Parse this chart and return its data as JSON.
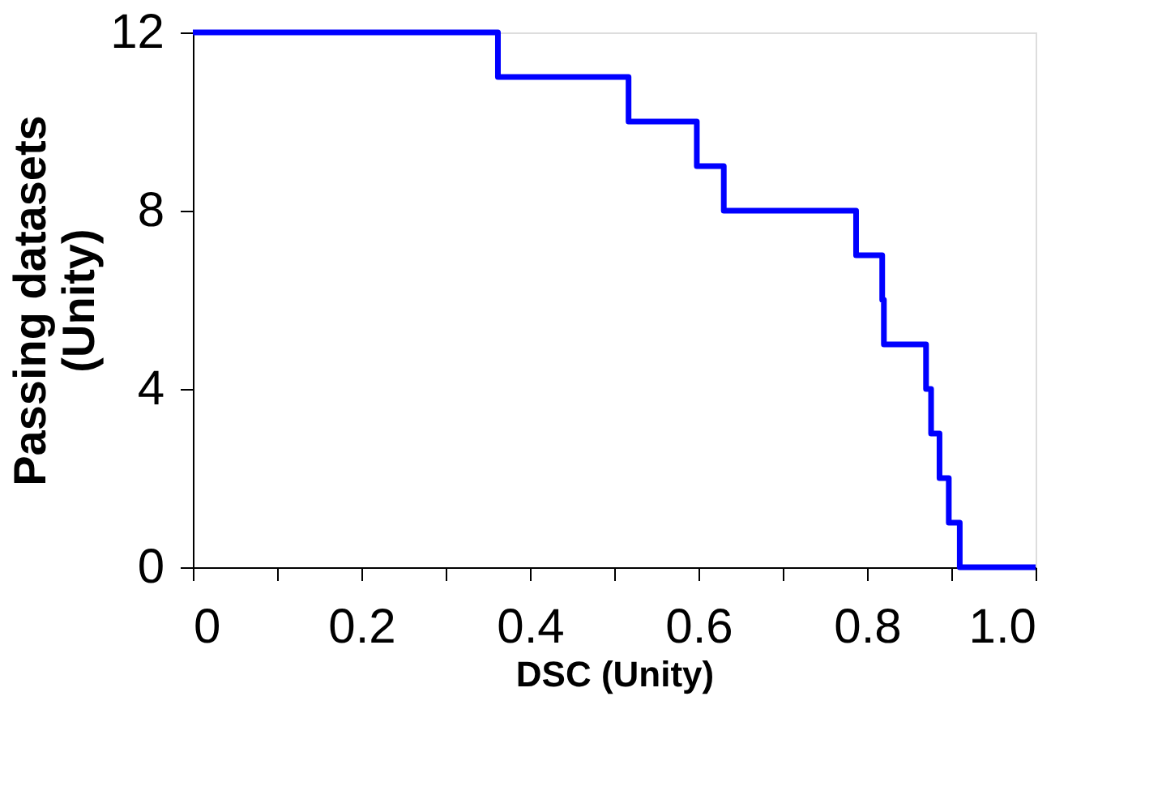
{
  "chart_data": {
    "type": "step",
    "x": [
      0,
      0.362,
      0.517,
      0.598,
      0.63,
      0.787,
      0.818,
      0.82,
      0.87,
      0.876,
      0.886,
      0.897,
      0.91,
      1
    ],
    "series": [
      {
        "color": "#0000ff",
        "values": [
          12,
          11,
          10,
          9,
          8,
          7,
          6,
          5,
          4,
          3,
          2,
          1,
          0,
          0
        ]
      }
    ],
    "xlabel": "DSC (Unity)",
    "ylabel": "Passing datasets\n(Unity)",
    "xlim": [
      0,
      1
    ],
    "ylim": [
      0,
      12
    ],
    "xticks": [
      0,
      {
        "value": 0.1,
        "label": null
      },
      0.2,
      {
        "value": 0.3,
        "label": null
      },
      0.4,
      {
        "value": 0.5,
        "label": null
      },
      0.6,
      {
        "value": 0.7,
        "label": null
      },
      0.8,
      {
        "value": 0.9,
        "label": null
      },
      {
        "value": 1,
        "label": "1.0"
      }
    ],
    "yticks": [
      0,
      4,
      8,
      12
    ],
    "grid": false,
    "line_style": "solid",
    "marker": "none"
  }
}
